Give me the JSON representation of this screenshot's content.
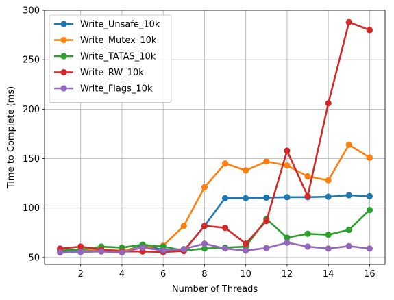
{
  "chart_data": {
    "type": "line",
    "title": "",
    "xlabel": "Number of Threads",
    "ylabel": "Time to Complete (ms)",
    "xlim": [
      0.25,
      16.75
    ],
    "ylim": [
      43,
      300
    ],
    "xticks": [
      2,
      4,
      6,
      8,
      10,
      12,
      14,
      16
    ],
    "yticks": [
      50,
      100,
      150,
      200,
      250,
      300
    ],
    "grid": true,
    "legend_position": "top-left",
    "x": [
      1,
      2,
      3,
      4,
      5,
      6,
      7,
      8,
      9,
      10,
      11,
      12,
      13,
      14,
      15,
      16
    ],
    "series": [
      {
        "name": "Write_Unsafe_10k",
        "color": "#1f77b4",
        "values": [
          56,
          57,
          57,
          56,
          62,
          58,
          57,
          82,
          110,
          110,
          110.5,
          111,
          111,
          111.5,
          113,
          112
        ]
      },
      {
        "name": "Write_Mutex_10k",
        "color": "#ff7f0e",
        "values": [
          57,
          58,
          58,
          57,
          60,
          62,
          82,
          121,
          145,
          138,
          147,
          143,
          132,
          128,
          164,
          151
        ]
      },
      {
        "name": "Write_TATAS_10k",
        "color": "#2ca02c",
        "values": [
          57,
          58,
          61,
          60,
          63,
          61,
          57,
          59,
          60,
          61,
          89,
          70,
          74,
          73,
          78,
          98
        ]
      },
      {
        "name": "Write_RW_10k",
        "color": "#d62728",
        "values": [
          59,
          61,
          58,
          56,
          56,
          55.5,
          56.5,
          82,
          80,
          64,
          87,
          158,
          112,
          206,
          288,
          280
        ]
      },
      {
        "name": "Write_Flags_10k",
        "color": "#9467bd",
        "values": [
          55,
          55.5,
          56,
          55,
          60,
          57,
          58.5,
          64,
          59,
          57,
          59.5,
          65,
          61,
          59,
          61.5,
          59
        ]
      }
    ]
  }
}
